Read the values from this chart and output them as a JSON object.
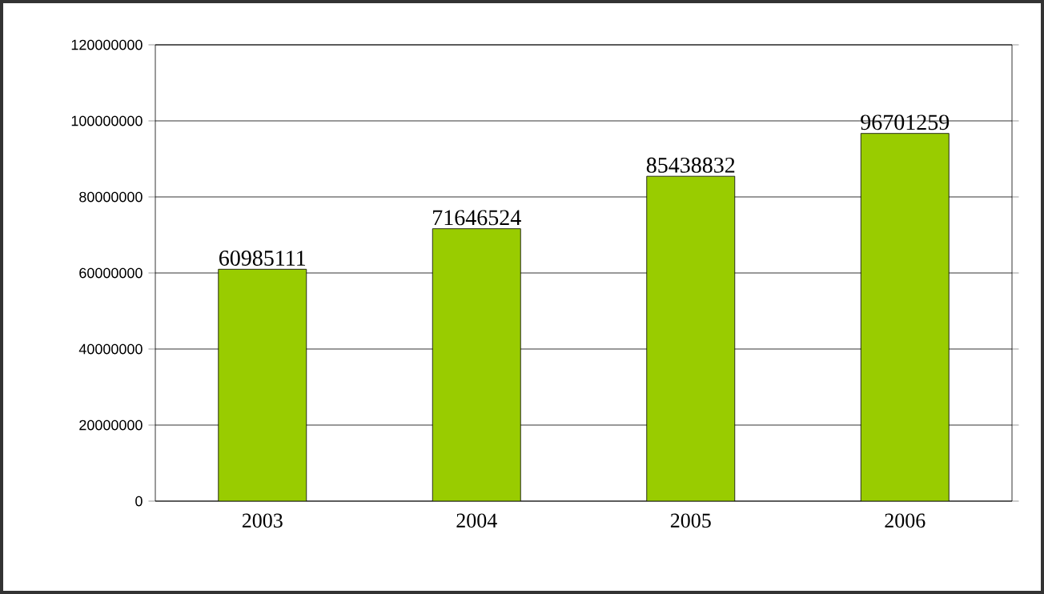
{
  "chart_data": {
    "type": "bar",
    "categories": [
      "2003",
      "2004",
      "2005",
      "2006"
    ],
    "values": [
      60985111,
      71646524,
      85438832,
      96701259
    ],
    "color": "#99cc00",
    "ylim": [
      0,
      120000000
    ],
    "yticks": [
      0,
      20000000,
      40000000,
      60000000,
      80000000,
      100000000,
      120000000
    ],
    "grid": "y",
    "data_labels": true
  }
}
